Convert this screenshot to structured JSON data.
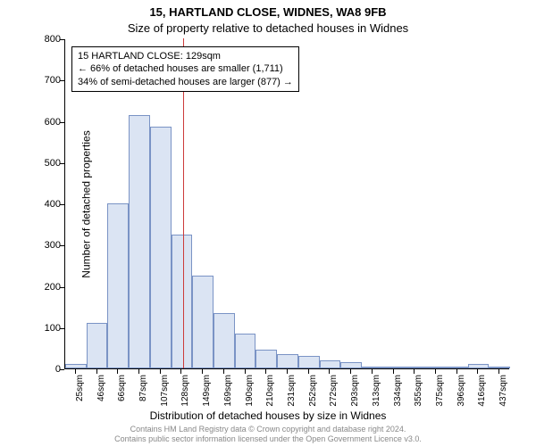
{
  "title1": "15, HARTLAND CLOSE, WIDNES, WA8 9FB",
  "title2": "Size of property relative to detached houses in Widnes",
  "ylabel": "Number of detached properties",
  "xlabel": "Distribution of detached houses by size in Widnes",
  "annotation": {
    "line1": "15 HARTLAND CLOSE: 129sqm",
    "line2": "← 66% of detached houses are smaller (1,711)",
    "line3": "34% of semi-detached houses are larger (877) →"
  },
  "footer": {
    "line1": "Contains HM Land Registry data © Crown copyright and database right 2024.",
    "line2": "Contains public sector information licensed under the Open Government Licence v3.0."
  },
  "chart": {
    "type": "histogram",
    "ylim": [
      0,
      800
    ],
    "ytick_step": 100,
    "yticks": [
      0,
      100,
      200,
      300,
      400,
      500,
      600,
      700,
      800
    ],
    "x_labels": [
      "25sqm",
      "46sqm",
      "66sqm",
      "87sqm",
      "107sqm",
      "128sqm",
      "149sqm",
      "169sqm",
      "190sqm",
      "210sqm",
      "231sqm",
      "252sqm",
      "272sqm",
      "293sqm",
      "313sqm",
      "334sqm",
      "355sqm",
      "375sqm",
      "396sqm",
      "416sqm",
      "437sqm"
    ],
    "values": [
      10,
      110,
      400,
      615,
      585,
      325,
      225,
      135,
      85,
      45,
      35,
      30,
      20,
      15,
      5,
      5,
      2,
      5,
      2,
      10,
      2
    ],
    "reference_value": 129,
    "x_start": 25,
    "x_step": 20.6,
    "bar_fill": "#dbe4f3",
    "bar_stroke": "#7a93c5",
    "reference_color": "#cc3b3b",
    "background_color": "#ffffff",
    "title_fontsize": 13,
    "label_fontsize": 12,
    "tick_fontsize": 11,
    "annotation_fontsize": 11,
    "footer_fontsize": 9,
    "footer_color": "#888888"
  }
}
